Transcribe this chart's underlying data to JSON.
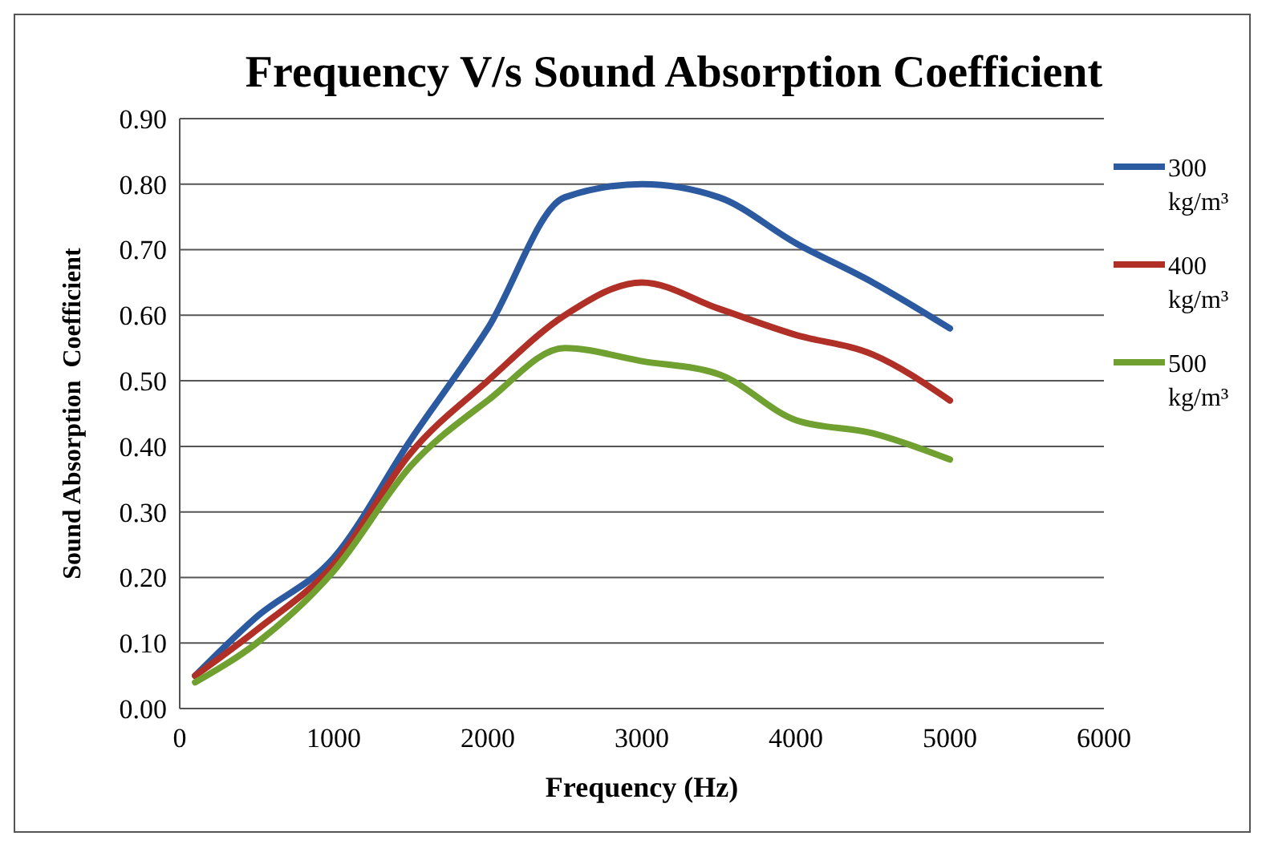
{
  "chart_data": {
    "type": "line",
    "title": "Frequency V/s Sound Absorption Coefficient",
    "xlabel": "Frequency (Hz)",
    "ylabel": "Sound Absorption  Coefficient",
    "x": [
      100,
      500,
      1000,
      1500,
      2000,
      2500,
      3000,
      3500,
      4000,
      4500,
      5000
    ],
    "series": [
      {
        "name": "300 kg/m³",
        "color": "#2c5aa0",
        "values": [
          0.05,
          0.14,
          0.23,
          0.41,
          0.58,
          0.78,
          0.8,
          0.78,
          0.71,
          0.65,
          0.58
        ]
      },
      {
        "name": "400 kg/m³",
        "color": "#b03028",
        "values": [
          0.05,
          0.12,
          0.22,
          0.39,
          0.5,
          0.6,
          0.65,
          0.61,
          0.57,
          0.54,
          0.47
        ]
      },
      {
        "name": "500 kg/m³",
        "color": "#6fa030",
        "values": [
          0.04,
          0.1,
          0.21,
          0.37,
          0.47,
          0.55,
          0.53,
          0.51,
          0.44,
          0.42,
          0.38
        ]
      }
    ],
    "xlim": [
      0,
      6000
    ],
    "xticks": [
      0,
      1000,
      2000,
      3000,
      4000,
      5000,
      6000
    ],
    "ylim": [
      0,
      0.9
    ],
    "yticks": [
      {
        "value": 0,
        "label": "0.00"
      },
      {
        "value": 0.1,
        "label": "0.10"
      },
      {
        "value": 0.2,
        "label": "0.20"
      },
      {
        "value": 0.3,
        "label": "0.30"
      },
      {
        "value": 0.4,
        "label": "0.40"
      },
      {
        "value": 0.5,
        "label": "0.50"
      },
      {
        "value": 0.6,
        "label": "0.60"
      },
      {
        "value": 0.7,
        "label": "0.70"
      },
      {
        "value": 0.8,
        "label": "0.80"
      },
      {
        "value": 0.9,
        "label": "0.90"
      }
    ],
    "grid": "y",
    "legend": "right",
    "marker": "none",
    "line_style": "solid"
  }
}
